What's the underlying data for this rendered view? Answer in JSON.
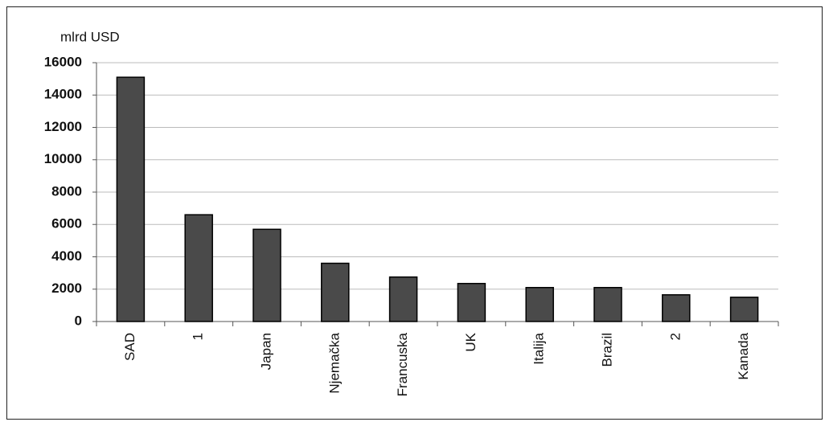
{
  "chart_data": {
    "type": "bar",
    "y_axis_label": "mlrd USD",
    "categories": [
      "SAD",
      "1",
      "Japan",
      "Njemačka",
      "Francuska",
      "UK",
      "Italija",
      "Brazil",
      "2",
      "Kanada"
    ],
    "values": [
      15100,
      6600,
      5700,
      3600,
      2750,
      2350,
      2100,
      2100,
      1650,
      1500
    ],
    "color": "#4a4a4a",
    "ylim": [
      0,
      16000
    ],
    "yticks": [
      0,
      2000,
      4000,
      6000,
      8000,
      10000,
      12000,
      14000,
      16000
    ],
    "grid": true
  }
}
